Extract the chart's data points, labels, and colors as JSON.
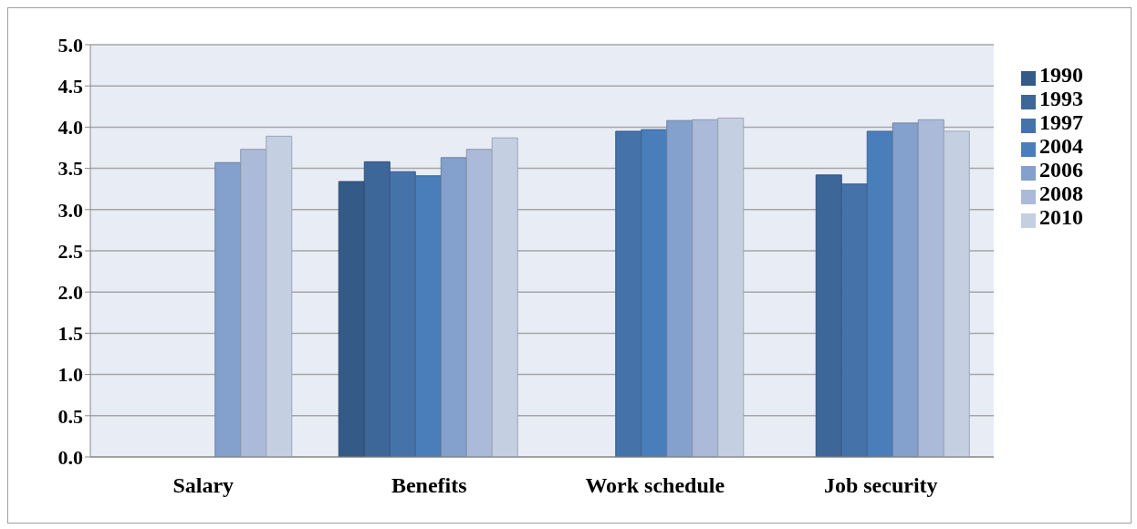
{
  "chart_data": {
    "type": "bar",
    "categories": [
      "Salary",
      "Benefits",
      "Work schedule",
      "Job security"
    ],
    "series": [
      {
        "name": "1990",
        "color": "#345a88",
        "values": [
          null,
          3.34,
          null,
          null
        ]
      },
      {
        "name": "1993",
        "color": "#3d6699",
        "values": [
          null,
          3.58,
          null,
          3.42
        ]
      },
      {
        "name": "1997",
        "color": "#4672aa",
        "values": [
          null,
          3.46,
          3.95,
          3.31
        ]
      },
      {
        "name": "2004",
        "color": "#4a7ebb",
        "values": [
          null,
          3.41,
          3.97,
          3.95
        ]
      },
      {
        "name": "2006",
        "color": "#84a0cc",
        "values": [
          3.57,
          3.63,
          4.08,
          4.05
        ]
      },
      {
        "name": "2008",
        "color": "#abbad8",
        "values": [
          3.73,
          3.73,
          4.09,
          4.09
        ]
      },
      {
        "name": "2010",
        "color": "#c4cfe2",
        "values": [
          3.89,
          3.87,
          4.11,
          3.95
        ]
      }
    ],
    "ylim": [
      0,
      5
    ],
    "yticks": [
      {
        "value": 0,
        "label": "0.0"
      },
      {
        "value": 0.5,
        "label": "0.5"
      },
      {
        "value": 1,
        "label": "1.0"
      },
      {
        "value": 1.5,
        "label": "1.5"
      },
      {
        "value": 2,
        "label": "2.0"
      },
      {
        "value": 2.5,
        "label": "2.5"
      },
      {
        "value": 3,
        "label": "3.0"
      },
      {
        "value": 3.5,
        "label": "3.5"
      },
      {
        "value": 4,
        "label": "4.0"
      },
      {
        "value": 4.5,
        "label": "4.5"
      },
      {
        "value": 5,
        "label": "5.0"
      }
    ],
    "grid": "y",
    "legend": "right"
  }
}
